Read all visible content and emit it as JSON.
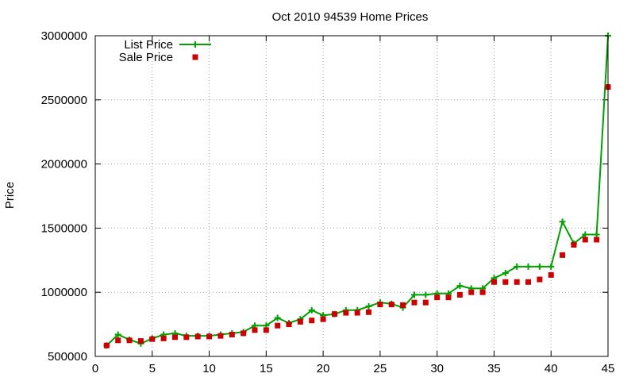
{
  "chart_data": {
    "type": "line",
    "title": "Oct 2010 94539 Home Prices",
    "xlabel": "",
    "ylabel": "Price",
    "xlim": [
      0,
      45
    ],
    "ylim": [
      500000,
      3000000
    ],
    "xticks": [
      "0",
      "5",
      "10",
      "15",
      "20",
      "25",
      "30",
      "35",
      "40",
      "45"
    ],
    "yticks": [
      "500000",
      "1000000",
      "1500000",
      "2000000",
      "2500000",
      "3000000"
    ],
    "grid": true,
    "legend": "top-left",
    "x": [
      1,
      2,
      3,
      4,
      5,
      6,
      7,
      8,
      9,
      10,
      11,
      12,
      13,
      14,
      15,
      16,
      17,
      18,
      19,
      20,
      21,
      22,
      23,
      24,
      25,
      26,
      27,
      28,
      29,
      30,
      31,
      32,
      33,
      34,
      35,
      36,
      37,
      38,
      39,
      40,
      41,
      42,
      43,
      44,
      45
    ],
    "series": [
      {
        "name": "List Price",
        "style": "line-plus",
        "color": "#00a000",
        "values": [
          585000,
          670000,
          630000,
          600000,
          640000,
          670000,
          680000,
          660000,
          660000,
          660000,
          670000,
          680000,
          690000,
          740000,
          740000,
          800000,
          760000,
          790000,
          860000,
          820000,
          830000,
          860000,
          860000,
          890000,
          920000,
          910000,
          880000,
          980000,
          980000,
          990000,
          990000,
          1050000,
          1030000,
          1030000,
          1110000,
          1150000,
          1200000,
          1200000,
          1200000,
          1200000,
          1550000,
          1380000,
          1450000,
          1450000,
          3000000
        ]
      },
      {
        "name": "Sale Price",
        "style": "square",
        "color": "#cc0000",
        "values": [
          585000,
          625000,
          625000,
          620000,
          635000,
          640000,
          650000,
          650000,
          655000,
          655000,
          660000,
          670000,
          680000,
          705000,
          705000,
          740000,
          750000,
          770000,
          780000,
          790000,
          830000,
          840000,
          840000,
          845000,
          905000,
          905000,
          900000,
          920000,
          920000,
          960000,
          960000,
          980000,
          1000000,
          1000000,
          1080000,
          1080000,
          1080000,
          1080000,
          1100000,
          1135000,
          1290000,
          1370000,
          1410000,
          1410000,
          2600000
        ]
      }
    ]
  }
}
